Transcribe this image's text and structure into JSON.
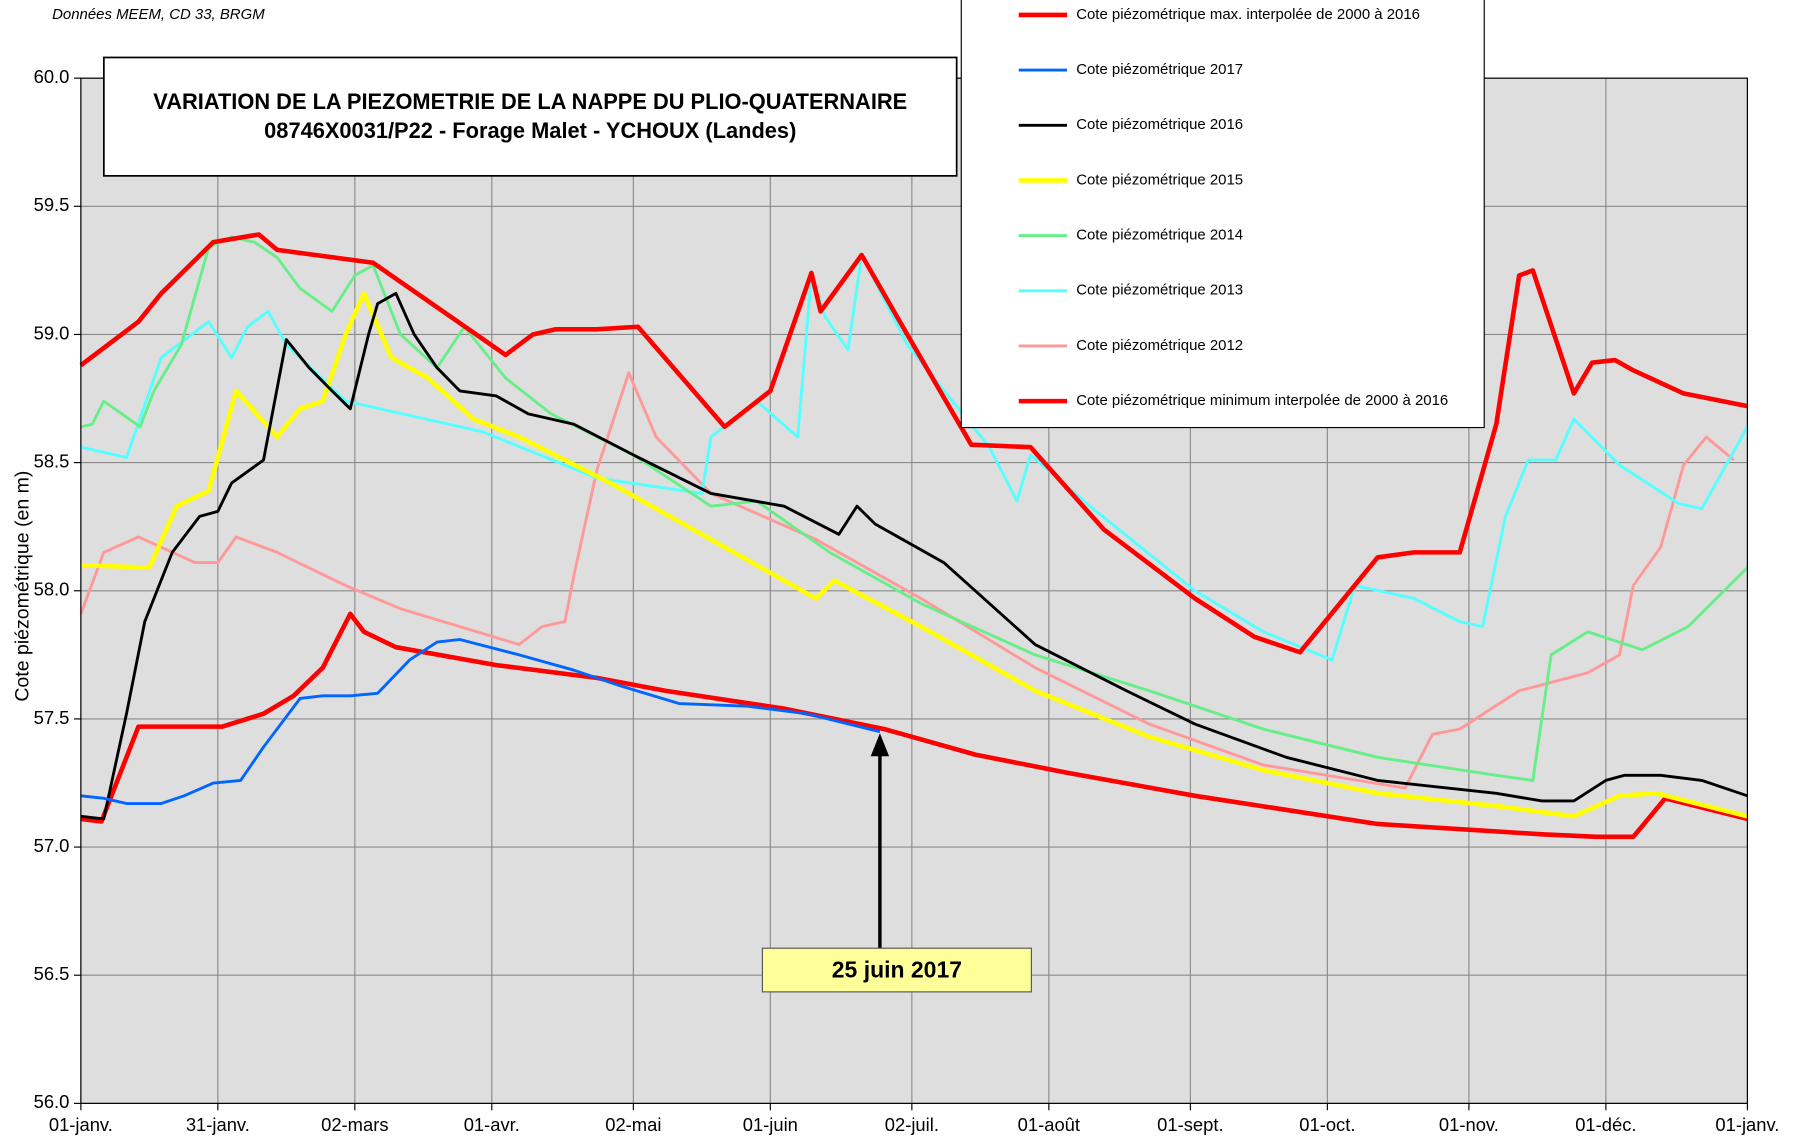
{
  "chart_data": {
    "type": "line",
    "source": "Données MEEM, CD 33, BRGM",
    "title": "VARIATION DE LA PIEZOMETRIE DE LA NAPPE DU PLIO-QUATERNAIRE",
    "subtitle": "08746X0031/P22  - Forage Malet - YCHOUX (Landes)",
    "y_label": "Cote piézométrique (en m)",
    "xlim": [
      0,
      365
    ],
    "xticks": [
      {
        "value": 0,
        "label": "01-janv."
      },
      {
        "value": 30,
        "label": "31-janv."
      },
      {
        "value": 60,
        "label": "02-mars"
      },
      {
        "value": 90,
        "label": "01-avr."
      },
      {
        "value": 121,
        "label": "02-mai"
      },
      {
        "value": 151,
        "label": "01-juin"
      },
      {
        "value": 182,
        "label": "02-juil."
      },
      {
        "value": 212,
        "label": "01-août"
      },
      {
        "value": 243,
        "label": "01-sept."
      },
      {
        "value": 273,
        "label": "01-oct."
      },
      {
        "value": 304,
        "label": "01-nov."
      },
      {
        "value": 334,
        "label": "01-déc."
      },
      {
        "value": 365,
        "label": "01-janv."
      }
    ],
    "ylim": [
      56,
      60
    ],
    "yticks": [
      {
        "value": 56,
        "label": "56.0"
      },
      56.5,
      {
        "value": 57,
        "label": "57.0"
      },
      57.5,
      {
        "value": 58,
        "label": "58.0"
      },
      58.5,
      {
        "value": 59,
        "label": "59.0"
      },
      59.5,
      {
        "value": 60,
        "label": "60.0"
      }
    ],
    "grid": true,
    "legend": "top-right",
    "annotation": {
      "text": "25 juin 2017",
      "x": 175
    },
    "series": [
      {
        "name": "Cote piézométrique max. interpolée de 2000 à 2016",
        "color": "#ff0000",
        "width": 4,
        "x": [
          0,
          12.6,
          17.6,
          29,
          39,
          43,
          64,
          93,
          99,
          104,
          113,
          122,
          141,
          151,
          160,
          162,
          171,
          181,
          195,
          208,
          224,
          244,
          257,
          267,
          284,
          292,
          302,
          310,
          315,
          318,
          327,
          331,
          336,
          340,
          351,
          365
        ],
        "values": [
          58.88,
          59.05,
          59.16,
          59.36,
          59.39,
          59.33,
          59.28,
          58.92,
          59.0,
          59.02,
          59.02,
          59.03,
          58.64,
          58.78,
          59.24,
          59.09,
          59.31,
          59.0,
          58.57,
          58.56,
          58.24,
          57.97,
          57.82,
          57.76,
          58.13,
          58.15,
          58.15,
          58.65,
          59.23,
          59.25,
          58.77,
          58.89,
          58.9,
          58.86,
          58.77,
          58.72
        ]
      },
      {
        "name": "Cote piézométrique 2017",
        "color": "#0066ff",
        "width": 2.5,
        "x": [
          0,
          5,
          10,
          17.6,
          22.6,
          29,
          35,
          40,
          48,
          53,
          59,
          65,
          72,
          78,
          83,
          96,
          108,
          118,
          131,
          146,
          159,
          175
        ],
        "values": [
          57.2,
          57.19,
          57.17,
          57.17,
          57.2,
          57.25,
          57.26,
          57.39,
          57.58,
          57.59,
          57.59,
          57.6,
          57.73,
          57.8,
          57.81,
          57.75,
          57.69,
          57.63,
          57.56,
          57.55,
          57.52,
          57.45
        ]
      },
      {
        "name": "Cote piézométrique 2016",
        "color": "#000000",
        "width": 2.5,
        "x": [
          0,
          5,
          10,
          14,
          20,
          26,
          30,
          33,
          40,
          45,
          50,
          55,
          59,
          63,
          65,
          69,
          73,
          78,
          83,
          91,
          98,
          108,
          121,
          138,
          154,
          166,
          170,
          174,
          189,
          209,
          229,
          244,
          264,
          284,
          310,
          320,
          327,
          334,
          338,
          346,
          355,
          365
        ],
        "values": [
          57.12,
          57.11,
          57.52,
          57.88,
          58.15,
          58.29,
          58.31,
          58.42,
          58.51,
          58.98,
          58.87,
          58.78,
          58.71,
          59.0,
          59.12,
          59.16,
          59.0,
          58.87,
          58.78,
          58.76,
          58.69,
          58.65,
          58.53,
          58.38,
          58.33,
          58.22,
          58.33,
          58.26,
          58.11,
          57.79,
          57.61,
          57.48,
          57.35,
          57.26,
          57.21,
          57.18,
          57.18,
          57.26,
          57.28,
          57.28,
          57.26,
          57.2
        ]
      },
      {
        "name": "Cote piézométrique 2015",
        "color": "#ffff00",
        "width": 4,
        "x": [
          0,
          15,
          21,
          28,
          34,
          43,
          48,
          53,
          58,
          62,
          68,
          76,
          86,
          96,
          116,
          138,
          161,
          165,
          184,
          209,
          234,
          259,
          284,
          310,
          327,
          337,
          345,
          365
        ],
        "values": [
          58.1,
          58.09,
          58.33,
          58.39,
          58.78,
          58.6,
          58.71,
          58.74,
          59.0,
          59.16,
          58.91,
          58.83,
          58.67,
          58.6,
          58.42,
          58.2,
          57.97,
          58.04,
          57.86,
          57.61,
          57.43,
          57.3,
          57.21,
          57.16,
          57.12,
          57.2,
          57.21,
          57.12
        ]
      },
      {
        "name": "Cote piézométrique 2014",
        "color": "#66ee88",
        "width": 2.5,
        "x": [
          0,
          2.5,
          5,
          13,
          16,
          22,
          28,
          33,
          38,
          43,
          48,
          55,
          60,
          64,
          70,
          78,
          84,
          93,
          103,
          121,
          138,
          148,
          164,
          184,
          209,
          234,
          259,
          284,
          310,
          318,
          322,
          330,
          342,
          352,
          365
        ],
        "values": [
          58.64,
          58.65,
          58.74,
          58.64,
          58.78,
          58.96,
          59.34,
          59.38,
          59.36,
          59.3,
          59.18,
          59.09,
          59.23,
          59.27,
          59.0,
          58.87,
          59.03,
          58.83,
          58.69,
          58.53,
          58.33,
          58.35,
          58.15,
          57.95,
          57.75,
          57.61,
          57.46,
          57.35,
          57.28,
          57.26,
          57.75,
          57.84,
          57.77,
          57.86,
          58.09
        ]
      },
      {
        "name": "Cote piézométrique 2013",
        "color": "#55ffff",
        "width": 2.5,
        "x": [
          0,
          10,
          17.6,
          28,
          33,
          36.5,
          41,
          45,
          58,
          68,
          88,
          113,
          136,
          138,
          148,
          157,
          160,
          163,
          168,
          171,
          181,
          199,
          205,
          208,
          221,
          244,
          259,
          274,
          279,
          292,
          302,
          307,
          312,
          317,
          323,
          327,
          337,
          350,
          355,
          365
        ],
        "values": [
          58.56,
          58.52,
          58.91,
          59.05,
          58.91,
          59.03,
          59.09,
          58.96,
          58.74,
          58.7,
          58.62,
          58.44,
          58.38,
          58.6,
          58.74,
          58.6,
          59.23,
          59.07,
          58.94,
          59.31,
          58.96,
          58.56,
          58.35,
          58.53,
          58.33,
          58.0,
          57.84,
          57.73,
          58.02,
          57.97,
          57.88,
          57.86,
          58.29,
          58.51,
          58.51,
          58.67,
          58.49,
          58.34,
          58.32,
          58.64
        ]
      },
      {
        "name": "Cote piézométrique 2012",
        "color": "#ff9999",
        "width": 2.5,
        "x": [
          0,
          5,
          12.6,
          25,
          30,
          34,
          43,
          58,
          70,
          83,
          96,
          101,
          106,
          108,
          113,
          120,
          126,
          138,
          161,
          184,
          209,
          234,
          259,
          290,
          296,
          302,
          315,
          330,
          337,
          340,
          346,
          351,
          356,
          362
        ],
        "values": [
          57.91,
          58.15,
          58.21,
          58.11,
          58.11,
          58.21,
          58.15,
          58.02,
          57.93,
          57.86,
          57.79,
          57.86,
          57.88,
          58.06,
          58.47,
          58.85,
          58.6,
          58.38,
          58.2,
          57.97,
          57.7,
          57.48,
          57.32,
          57.23,
          57.44,
          57.46,
          57.61,
          57.68,
          57.75,
          58.02,
          58.17,
          58.49,
          58.6,
          58.51
        ]
      },
      {
        "name": "Cote piézométrique minimum interpolée de 2000 à 2016",
        "color": "#ff0000",
        "width": 4,
        "x": [
          0,
          4.5,
          12.6,
          31,
          40,
          46.6,
          53,
          59,
          62,
          69,
          91,
          113,
          128,
          154,
          176,
          196,
          216,
          244,
          284,
          320,
          332,
          340,
          347,
          365
        ],
        "values": [
          57.11,
          57.1,
          57.47,
          57.47,
          57.52,
          57.59,
          57.7,
          57.91,
          57.84,
          57.78,
          57.71,
          57.66,
          57.61,
          57.54,
          57.46,
          57.36,
          57.29,
          57.2,
          57.09,
          57.05,
          57.04,
          57.04,
          57.19,
          57.11
        ]
      }
    ]
  }
}
